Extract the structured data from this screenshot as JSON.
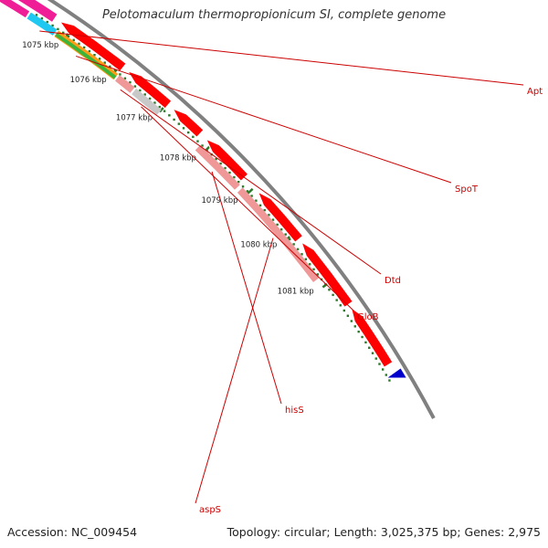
{
  "title": "Pelotomaculum thermopropionicum SI, complete genome",
  "footer": {
    "accession_label": "Accession: NC_009454",
    "summary_label": "Topology: circular; Length: 3,025,375 bp; Genes: 2,975"
  },
  "ticks": [
    "1075 kbp",
    "1076 kbp",
    "1077 kbp",
    "1078 kbp",
    "1079 kbp",
    "1080 kbp",
    "1081 kbp"
  ],
  "genes": [
    {
      "name": "Apt",
      "color": "#1ec8f0",
      "track": "inner"
    },
    {
      "name": "SpoT",
      "color": "#ff9b14",
      "track": "inner"
    },
    {
      "name": "Dtd",
      "color": "#f09898",
      "track": "inner"
    },
    {
      "name": "GloB",
      "color": "#c8c8c8",
      "track": "inner"
    },
    {
      "name": "hisS",
      "color": "#f09898",
      "track": "inner"
    },
    {
      "name": "aspS",
      "color": "#f09898",
      "track": "inner"
    }
  ],
  "colors": {
    "label": "#cc0000",
    "cds": "#ff0000",
    "backbone": "#808080",
    "tick": "#2a7a2a",
    "green_track": "#3cb43c",
    "magenta_track": "#f01e96",
    "blue_marker": "#0000cc"
  }
}
